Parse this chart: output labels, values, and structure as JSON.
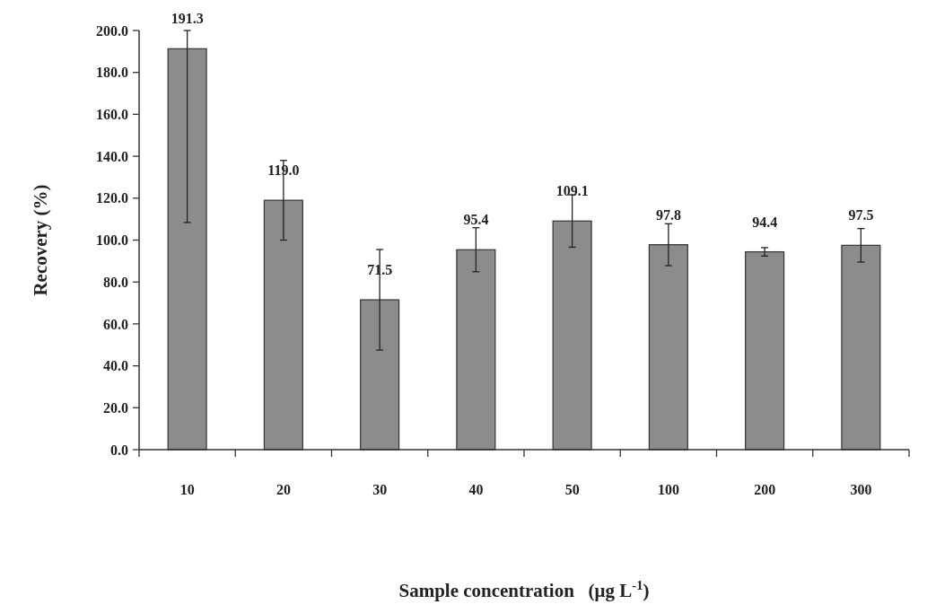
{
  "chart_data": {
    "type": "bar",
    "xlabel": "Sample concentration   (μg L$^{-1}$)",
    "ylabel": "Recovery (%)",
    "categories": [
      "10",
      "20",
      "30",
      "40",
      "50",
      "100",
      "200",
      "300"
    ],
    "values": [
      191.3,
      119.0,
      71.5,
      95.4,
      109.1,
      97.8,
      94.4,
      97.5
    ],
    "value_labels": [
      "191.3",
      "119.0",
      "71.5",
      "95.4",
      "109.1",
      "97.8",
      "94.4",
      "97.5"
    ],
    "errors": [
      [
        108.4,
        200
      ],
      19,
      24,
      10.5,
      12.5,
      10,
      2,
      8
    ],
    "color": "#8c8c8c",
    "ylim": [
      0,
      200
    ],
    "yticks": [
      {
        "value": 0,
        "label": "0.0"
      },
      {
        "value": 20,
        "label": "20.0"
      },
      {
        "value": 40,
        "label": "40.0"
      },
      {
        "value": 60,
        "label": "60.0"
      },
      {
        "value": 80,
        "label": "80.0"
      },
      {
        "value": 100,
        "label": "100.0"
      },
      {
        "value": 120,
        "label": "120.0"
      },
      {
        "value": 140,
        "label": "140.0"
      },
      {
        "value": 160,
        "label": "160.0"
      },
      {
        "value": 180,
        "label": "180.0"
      },
      {
        "value": 200,
        "label": "200.0"
      }
    ],
    "grid": false
  }
}
